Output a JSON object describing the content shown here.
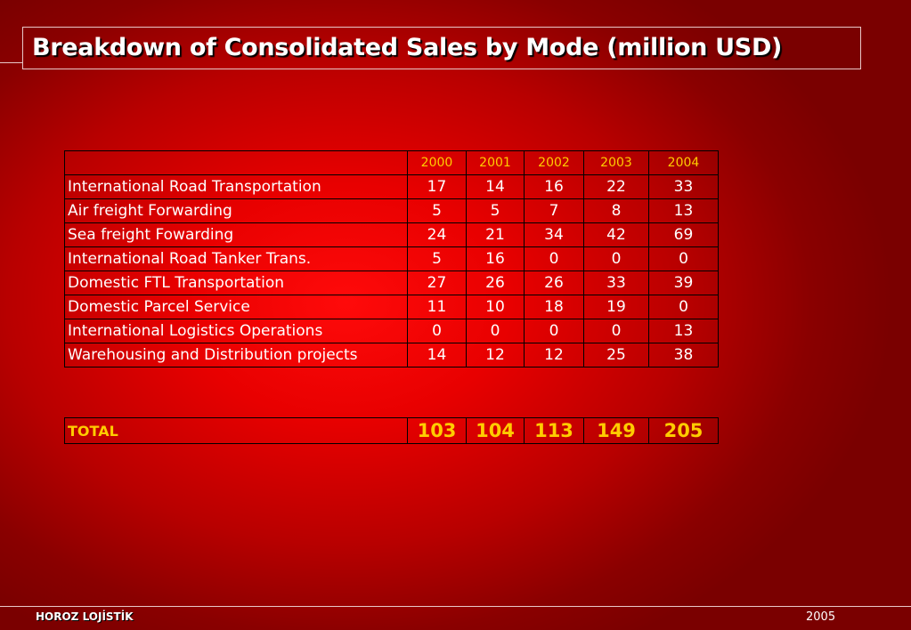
{
  "title": "Breakdown of Consolidated Sales by Mode (million USD)",
  "table": {
    "years": [
      "2000",
      "2001",
      "2002",
      "2003",
      "2004"
    ],
    "rows": [
      {
        "label": "International Road Transportation",
        "values": [
          "17",
          "14",
          "16",
          "22",
          "33"
        ]
      },
      {
        "label": "Air freight Forwarding",
        "values": [
          "5",
          "5",
          "7",
          "8",
          "13"
        ]
      },
      {
        "label": "Sea freight Fowarding",
        "values": [
          "24",
          "21",
          "34",
          "42",
          "69"
        ]
      },
      {
        "label": "International Road Tanker Trans.",
        "values": [
          "5",
          "16",
          "0",
          "0",
          "0"
        ]
      },
      {
        "label": "Domestic FTL Transportation",
        "values": [
          "27",
          "26",
          "26",
          "33",
          "39"
        ]
      },
      {
        "label": "Domestic Parcel Service",
        "values": [
          "11",
          "10",
          "18",
          "19",
          "0"
        ]
      },
      {
        "label": "International Logistics Operations",
        "values": [
          "0",
          "0",
          "0",
          "0",
          "13"
        ]
      },
      {
        "label": "Warehousing and Distribution projects",
        "values": [
          "14",
          "12",
          "12",
          "25",
          "38"
        ]
      }
    ]
  },
  "total": {
    "label": "TOTAL",
    "values": [
      "103",
      "104",
      "113",
      "149",
      "205"
    ]
  },
  "footer": {
    "company": "HOROZ LOJİSTİK",
    "year": "2005"
  },
  "colors": {
    "background": "#e80000",
    "year_header": "#ffcc00",
    "total_text": "#ffcc00",
    "text": "#ffffff",
    "border": "#000000"
  }
}
